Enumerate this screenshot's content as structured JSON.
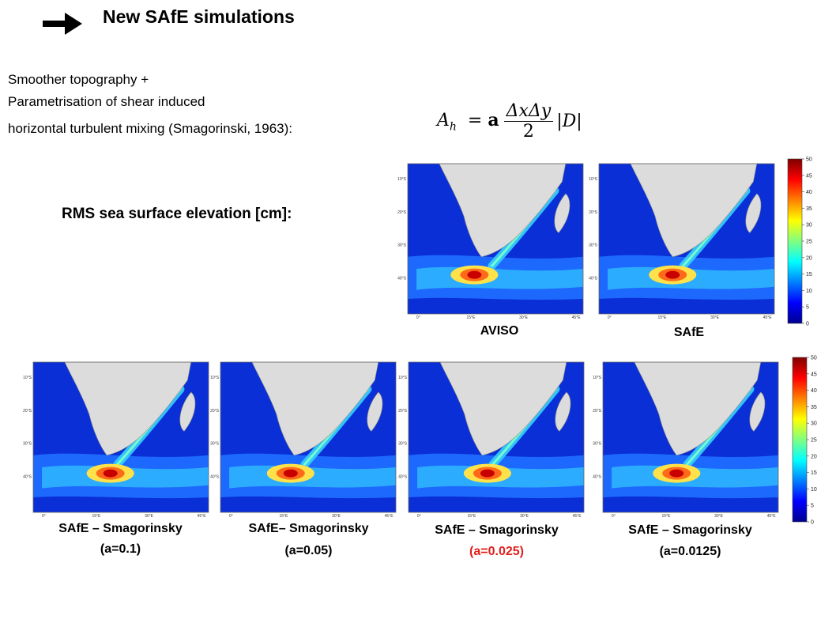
{
  "slide": {
    "title": "New SAfE simulations",
    "intro_lines": [
      "Smoother topography +",
      "Parametrisation of shear induced",
      "horizontal turbulent mixing (Smagorinski, 1963):"
    ],
    "formula": {
      "lhs": "A",
      "lhs_sub": "h",
      "coef": "a",
      "numerator": "ΔxΔy",
      "denominator": "2",
      "term": "|D|"
    },
    "rms_heading": "RMS sea surface elevation [cm]:"
  },
  "colorbar": {
    "ticks": [
      "50",
      "45",
      "40",
      "35",
      "30",
      "25",
      "20",
      "15",
      "10",
      "5",
      "0"
    ],
    "colors": [
      "#7f0000",
      "#ff0000",
      "#ff8000",
      "#ffff00",
      "#80ff80",
      "#00ffff",
      "#0080ff",
      "#0000ff",
      "#00008f"
    ]
  },
  "map_ticks": {
    "lat": [
      "10°S",
      "20°S",
      "30°S",
      "40°S"
    ],
    "lon": [
      "0°",
      "15°E",
      "30°E",
      "45°E"
    ]
  },
  "top_panels": [
    {
      "label": "AVISO",
      "param": ""
    },
    {
      "label": "SAfE",
      "param": ""
    }
  ],
  "bottom_panels": [
    {
      "label": "SAfE – Smagorinsky",
      "param": "(a=0.1)",
      "highlight": false
    },
    {
      "label": "SAfE– Smagorinsky",
      "param": "(a=0.05)",
      "highlight": false
    },
    {
      "label": "SAfE – Smagorinsky",
      "param": "(a=0.025)",
      "highlight": true
    },
    {
      "label": "SAfE – Smagorinsky",
      "param": "(a=0.0125)",
      "highlight": false
    }
  ]
}
